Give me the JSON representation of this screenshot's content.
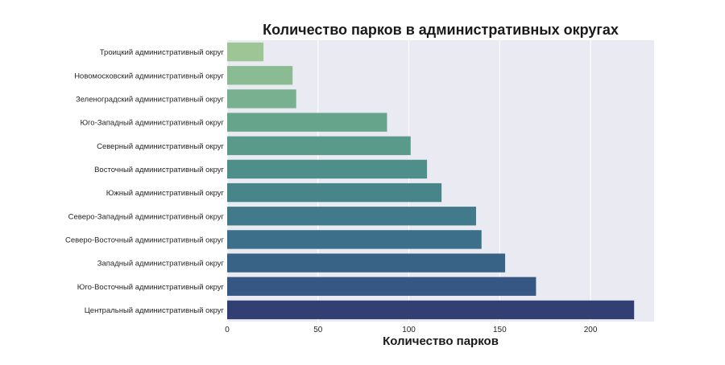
{
  "chart_data": {
    "type": "bar",
    "orientation": "horizontal",
    "title": "Количество парков в административных округах",
    "xlabel": "Количество парков",
    "ylabel": "",
    "categories": [
      "Троицкий административный округ",
      "Новомосковский административный округ",
      "Зеленоградский административный округ",
      "Юго-Западный административный округ",
      "Северный административный округ",
      "Восточный административный округ",
      "Южный административный округ",
      "Северо-Западный административный округ",
      "Северо-Восточный административный округ",
      "Западный административный округ",
      "Юго-Восточный административный округ",
      "Центральный административный округ"
    ],
    "values": [
      20,
      36,
      38,
      88,
      101,
      110,
      118,
      137,
      140,
      153,
      170,
      224
    ],
    "xlim": [
      0,
      235
    ],
    "xticks": [
      0,
      50,
      100,
      150,
      200
    ],
    "grid": true,
    "background": "#eaeaf2",
    "colors": [
      "#9dc596",
      "#8bbb92",
      "#79b08f",
      "#67a48c",
      "#5a9a8b",
      "#4f8f8b",
      "#47858b",
      "#417a8a",
      "#3c6f89",
      "#386386",
      "#365783",
      "#313f72"
    ]
  }
}
